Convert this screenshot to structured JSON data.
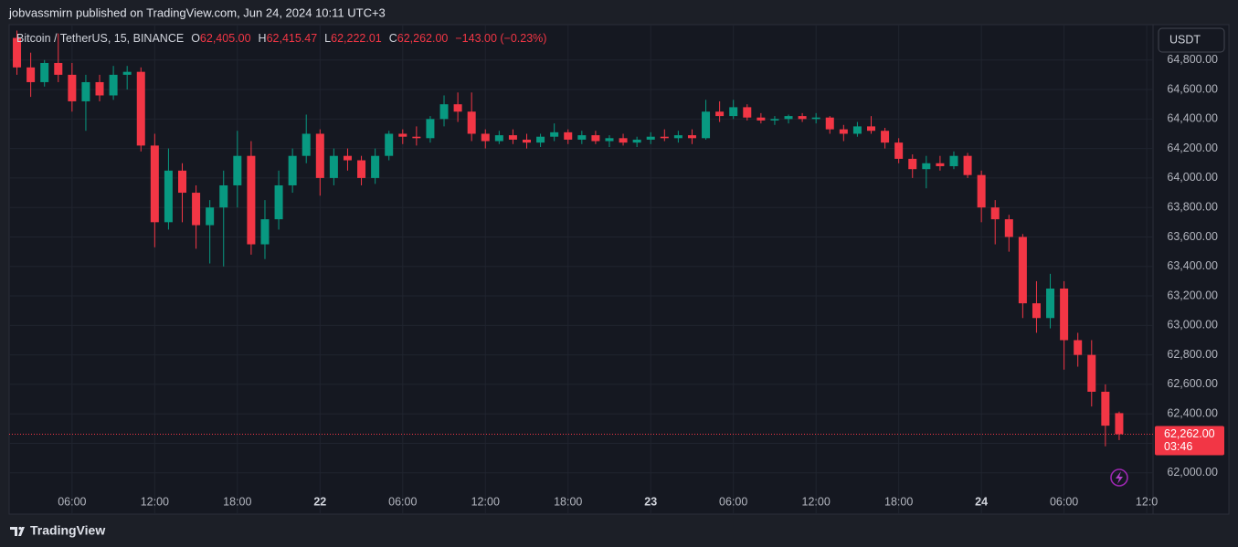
{
  "header": {
    "text": "jobvassmirn published on TradingView.com, Jun 24, 2024 10:11 UTC+3"
  },
  "footer": {
    "brand": "TradingView"
  },
  "chart_data": {
    "type": "candlestick",
    "symbol": "Bitcoin / TetherUS, 15, BINANCE",
    "legend": [
      {
        "label": "O",
        "value": "62,405.00"
      },
      {
        "label": "H",
        "value": "62,415.47"
      },
      {
        "label": "L",
        "value": "62,222.01"
      },
      {
        "label": "C",
        "value": "62,262.00"
      }
    ],
    "change": "−143.00 (−0.23%)",
    "currency": "USDT",
    "last_price": {
      "value": 62262,
      "label": "62,262.00"
    },
    "countdown": "03:46",
    "up_color": "#089981",
    "down_color": "#f23645",
    "grid": true,
    "categories": [
      null,
      null,
      null,
      null,
      "06:00",
      null,
      null,
      null,
      null,
      null,
      "12:00",
      null,
      null,
      null,
      null,
      null,
      "18:00",
      null,
      null,
      null,
      null,
      null,
      "22",
      null,
      null,
      null,
      null,
      null,
      "06:00",
      null,
      null,
      null,
      null,
      null,
      "12:00",
      null,
      null,
      null,
      null,
      null,
      "18:00",
      null,
      null,
      null,
      null,
      null,
      "23",
      null,
      null,
      null,
      null,
      null,
      "06:00",
      null,
      null,
      null,
      null,
      null,
      "12:00",
      null,
      null,
      null,
      null,
      null,
      "18:00",
      null,
      null,
      null,
      null,
      null,
      "24",
      null,
      null,
      null,
      null,
      null,
      "06:00",
      null,
      null,
      null,
      null,
      null,
      "12:0"
    ],
    "open": [
      64950,
      64750,
      64650,
      64780,
      64700,
      64520,
      64650,
      64560,
      64700,
      64720,
      64220,
      63700,
      64050,
      63900,
      63680,
      63800,
      63950,
      64150,
      63550,
      63720,
      63950,
      64150,
      64300,
      64000,
      64150,
      64120,
      64000,
      64150,
      64300,
      64280,
      64270,
      64400,
      64500,
      64450,
      64300,
      64250,
      64290,
      64260,
      64240,
      64280,
      64310,
      64260,
      64290,
      64250,
      64270,
      64240,
      64260,
      64280,
      64270,
      64290,
      64270,
      64450,
      64420,
      64480,
      64410,
      64390,
      64400,
      64420,
      64400,
      64410,
      64330,
      64300,
      64350,
      64320,
      64240,
      64130,
      64060,
      64100,
      64080,
      64150,
      64020,
      63800,
      63720,
      63600,
      63150,
      63050,
      63250,
      62900,
      62800,
      62550,
      62405,
      null,
      null
    ],
    "high": [
      65000,
      64850,
      64800,
      64980,
      64780,
      64700,
      64700,
      64760,
      64760,
      64750,
      64300,
      64200,
      64100,
      63950,
      63850,
      64050,
      64320,
      64250,
      63850,
      64050,
      64200,
      64430,
      64330,
      64200,
      64200,
      64150,
      64200,
      64320,
      64330,
      64350,
      64420,
      64560,
      64580,
      64580,
      64330,
      64320,
      64330,
      64300,
      64300,
      64370,
      64330,
      64320,
      64320,
      64290,
      64300,
      64280,
      64310,
      64330,
      64320,
      64330,
      64530,
      64520,
      64530,
      64500,
      64440,
      64420,
      64430,
      64440,
      64440,
      64420,
      64360,
      64380,
      64420,
      64340,
      64270,
      64160,
      64150,
      64150,
      64180,
      64170,
      64050,
      63850,
      63750,
      63620,
      63300,
      63350,
      63300,
      62950,
      62900,
      62600,
      62415.47,
      null,
      null
    ],
    "low": [
      64700,
      64550,
      64620,
      64650,
      64450,
      64320,
      64520,
      64530,
      64600,
      64180,
      63530,
      63650,
      63700,
      63520,
      63420,
      63400,
      63800,
      63480,
      63450,
      63650,
      63900,
      64100,
      63880,
      63950,
      64050,
      63950,
      63960,
      64120,
      64230,
      64220,
      64240,
      64350,
      64380,
      64250,
      64200,
      64230,
      64230,
      64200,
      64210,
      64250,
      64230,
      64230,
      64230,
      64210,
      64220,
      64210,
      64230,
      64250,
      64240,
      64230,
      64260,
      64380,
      64400,
      64390,
      64370,
      64360,
      64370,
      64380,
      64370,
      64300,
      64250,
      64280,
      64300,
      64200,
      64100,
      64000,
      63930,
      64050,
      64060,
      64000,
      63700,
      63550,
      63500,
      63050,
      62950,
      62980,
      62700,
      62720,
      62450,
      62180,
      62222.01,
      null,
      null
    ],
    "close": [
      64750,
      64650,
      64780,
      64700,
      64520,
      64650,
      64560,
      64700,
      64720,
      64220,
      63700,
      64050,
      63900,
      63680,
      63800,
      63950,
      64150,
      63550,
      63720,
      63950,
      64150,
      64300,
      64000,
      64150,
      64120,
      64000,
      64150,
      64300,
      64280,
      64270,
      64400,
      64500,
      64450,
      64300,
      64250,
      64290,
      64260,
      64240,
      64280,
      64310,
      64260,
      64290,
      64250,
      64270,
      64240,
      64260,
      64280,
      64270,
      64290,
      64270,
      64450,
      64420,
      64480,
      64410,
      64390,
      64400,
      64420,
      64400,
      64410,
      64330,
      64300,
      64350,
      64320,
      64240,
      64130,
      64060,
      64100,
      64080,
      64150,
      64020,
      63800,
      63720,
      63600,
      63150,
      63050,
      63250,
      62900,
      62800,
      62550,
      62320,
      62262,
      null,
      null
    ],
    "ylim": [
      61720,
      65040
    ],
    "yticks": [
      {
        "value": 62000,
        "label": "62,000.00"
      },
      {
        "value": 62200,
        "label": "62,200.00"
      },
      {
        "value": 62400,
        "label": "62,400.00"
      },
      {
        "value": 62600,
        "label": "62,600.00"
      },
      {
        "value": 62800,
        "label": "62,800.00"
      },
      {
        "value": 63000,
        "label": "63,000.00"
      },
      {
        "value": 63200,
        "label": "63,200.00"
      },
      {
        "value": 63400,
        "label": "63,400.00"
      },
      {
        "value": 63600,
        "label": "63,600.00"
      },
      {
        "value": 63800,
        "label": "63,800.00"
      },
      {
        "value": 64000,
        "label": "64,000.00"
      },
      {
        "value": 64200,
        "label": "64,200.00"
      },
      {
        "value": 64400,
        "label": "64,400.00"
      },
      {
        "value": 64600,
        "label": "64,600.00"
      },
      {
        "value": 64800,
        "label": "64,800.00"
      }
    ]
  }
}
